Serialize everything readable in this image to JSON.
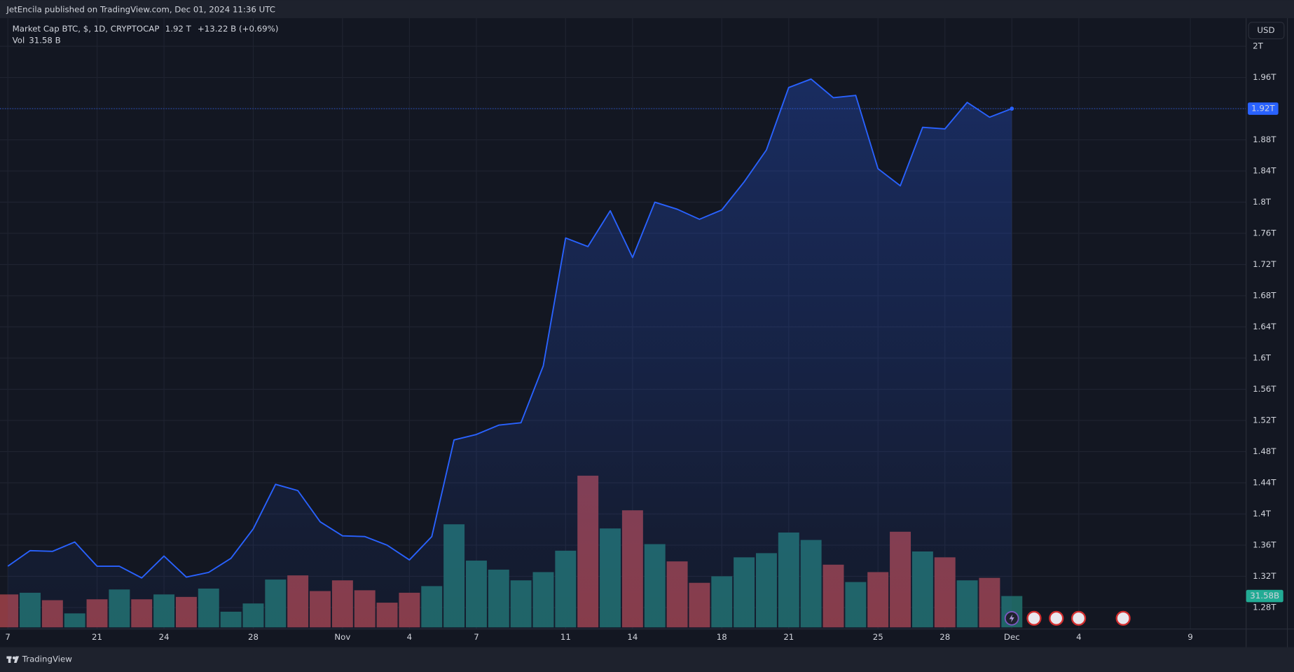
{
  "chart_data": {
    "type": "area",
    "header": "JetEncila published on TradingView.com, Dec 01, 2024 11:36 UTC",
    "legend": {
      "last": "1.92 T",
      "change": "+13.22 B (+0.69%)",
      "volume_last": "31.58 B"
    },
    "currency": "USD",
    "price_tag": "1.92T",
    "volume_tag": "31.58B",
    "brand": "TradingView",
    "xlim": [
      -0.35,
      55.5
    ],
    "xticks": [
      {
        "value": 0,
        "label": "7"
      },
      {
        "value": 4,
        "label": "21"
      },
      {
        "value": 7,
        "label": "24"
      },
      {
        "value": 11,
        "label": "28"
      },
      {
        "value": 15,
        "label": "Nov"
      },
      {
        "value": 18,
        "label": "4"
      },
      {
        "value": 21,
        "label": "7"
      },
      {
        "value": 25,
        "label": "11"
      },
      {
        "value": 28,
        "label": "14"
      },
      {
        "value": 32,
        "label": "18"
      },
      {
        "value": 35,
        "label": "21"
      },
      {
        "value": 39,
        "label": "25"
      },
      {
        "value": 42,
        "label": "28"
      },
      {
        "value": 45,
        "label": "Dec"
      },
      {
        "value": 48,
        "label": "4"
      },
      {
        "value": 53,
        "label": "9"
      }
    ],
    "ylim": [
      1.2524,
      2.036
    ],
    "yticks": [
      {
        "value": 2,
        "label": "2T"
      },
      {
        "value": 1.96,
        "label": "1.96T"
      },
      {
        "value": 1.92,
        "label": "1.92T"
      },
      {
        "value": 1.88,
        "label": "1.88T"
      },
      {
        "value": 1.84,
        "label": "1.84T"
      },
      {
        "value": 1.8,
        "label": "1.8T"
      },
      {
        "value": 1.76,
        "label": "1.76T"
      },
      {
        "value": 1.72,
        "label": "1.72T"
      },
      {
        "value": 1.68,
        "label": "1.68T"
      },
      {
        "value": 1.64,
        "label": "1.64T"
      },
      {
        "value": 1.6,
        "label": "1.6T"
      },
      {
        "value": 1.56,
        "label": "1.56T"
      },
      {
        "value": 1.52,
        "label": "1.52T"
      },
      {
        "value": 1.48,
        "label": "1.48T"
      },
      {
        "value": 1.44,
        "label": "1.44T"
      },
      {
        "value": 1.4,
        "label": "1.4T"
      },
      {
        "value": 1.36,
        "label": "1.36T"
      },
      {
        "value": 1.32,
        "label": "1.32T"
      },
      {
        "value": 1.28,
        "label": "1.28T"
      }
    ],
    "y2lim": [
      0,
      614
    ],
    "grid": true,
    "series": [
      {
        "name": "Market Cap BTC, $, 1D, CRYPTOCAP",
        "type": "area",
        "color": "#2962ff",
        "values": [
          1.333,
          1.353,
          1.352,
          1.364,
          1.333,
          1.333,
          1.318,
          1.346,
          1.319,
          1.325,
          1.343,
          1.381,
          1.438,
          1.43,
          1.39,
          1.372,
          1.371,
          1.36,
          1.341,
          1.371,
          1.495,
          1.502,
          1.514,
          1.517,
          1.59,
          1.754,
          1.743,
          1.789,
          1.729,
          1.8,
          1.791,
          1.778,
          1.79,
          1.826,
          1.867,
          1.947,
          1.958,
          1.934,
          1.937,
          1.843,
          1.821,
          1.896,
          1.894,
          1.928,
          1.909,
          1.92
        ]
      },
      {
        "name": "Vol",
        "type": "bar",
        "axis": "y2",
        "color": "#22ab94",
        "values": [
          33.2,
          34.9,
          27.4,
          14.1,
          28.3,
          38.2,
          28.3,
          33.2,
          30.7,
          39.1,
          15.8,
          24.1,
          48.2,
          52.4,
          36.6,
          47.4,
          37.4,
          24.9,
          34.9,
          41.6,
          103.9,
          67.3,
          58.2,
          47.4,
          55.7,
          77.3,
          152.9,
          99.7,
          118,
          83.9,
          66.5,
          44.9,
          51.5,
          70.6,
          74.8,
          95.6,
          88.1,
          63.2,
          45.7,
          55.7,
          96.4,
          76.5,
          70.6,
          47.4,
          49.9,
          31.58
        ],
        "colors": [
          "#8b3b43",
          "#1f6461",
          "#8b3b43",
          "#1f6461",
          "#8b3b43",
          "#1f6461",
          "#8b3b43",
          "#1f6461",
          "#8b3b43",
          "#1f6461",
          "#1f6461",
          "#1f6461",
          "#1f6461",
          "#8b3b43",
          "#8b3b43",
          "#8b3b43",
          "#8b3b43",
          "#8b3b43",
          "#8b3b43",
          "#1f6461",
          "#1f6461",
          "#1f6461",
          "#1f6461",
          "#1f6461",
          "#1f6461",
          "#1f6461",
          "#8b3b43",
          "#1f6461",
          "#8b3b43",
          "#1f6461",
          "#8b3b43",
          "#8b3b43",
          "#1f6461",
          "#1f6461",
          "#1f6461",
          "#1f6461",
          "#1f6461",
          "#8b3b43",
          "#1f6461",
          "#8b3b43",
          "#8b3b43",
          "#1f6461",
          "#8b3b43",
          "#1f6461",
          "#8b3b43",
          "#1f6461"
        ]
      }
    ]
  }
}
